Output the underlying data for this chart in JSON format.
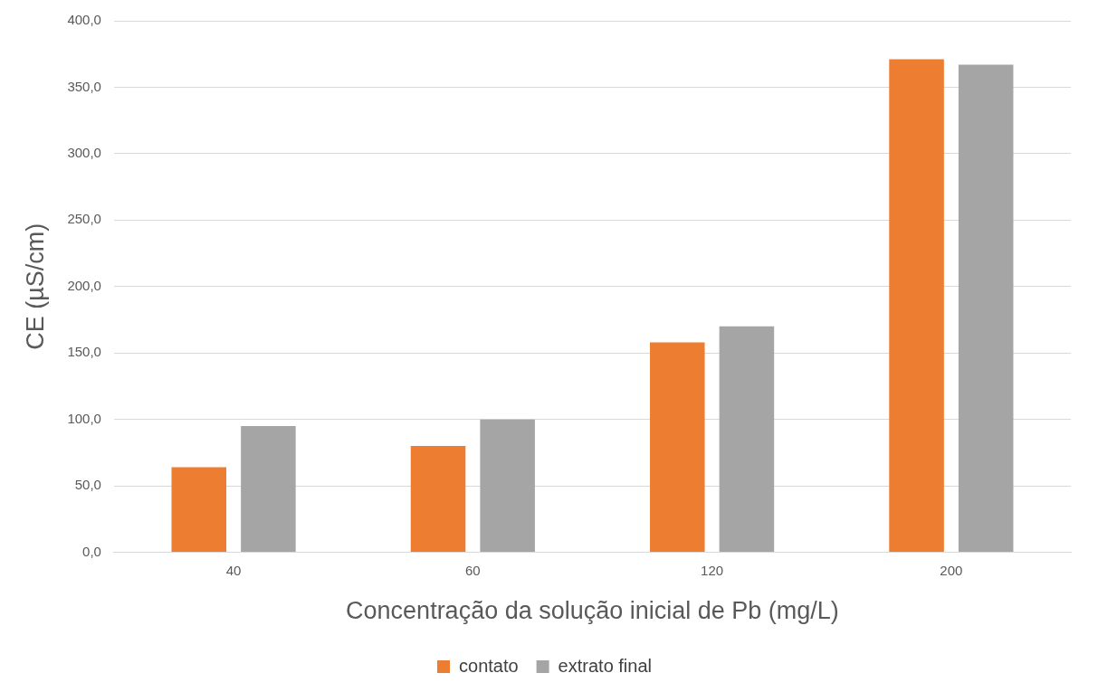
{
  "chart_data": {
    "type": "bar",
    "xlabel": "Concentração da solução inicial de Pb (mg/L)",
    "ylabel": "CE (µS/cm)",
    "categories": [
      "40",
      "60",
      "120",
      "200"
    ],
    "series": [
      {
        "name": "contato",
        "color": "#ed7d31",
        "values": [
          64,
          80,
          158,
          371
        ]
      },
      {
        "name": "extrato final",
        "color": "#a5a5a5",
        "values": [
          95,
          100,
          170,
          367
        ]
      }
    ],
    "ylim": [
      0,
      400
    ],
    "yticks": [
      {
        "value": 0,
        "label": "0,0"
      },
      {
        "value": 50,
        "label": "50,0"
      },
      {
        "value": 100,
        "label": "100,0"
      },
      {
        "value": 150,
        "label": "150,0"
      },
      {
        "value": 200,
        "label": "200,0"
      },
      {
        "value": 250,
        "label": "250,0"
      },
      {
        "value": 300,
        "label": "300,0"
      },
      {
        "value": 350,
        "label": "350,0"
      },
      {
        "value": 400,
        "label": "400,0"
      }
    ],
    "grid": "y",
    "legend": "bottom"
  }
}
